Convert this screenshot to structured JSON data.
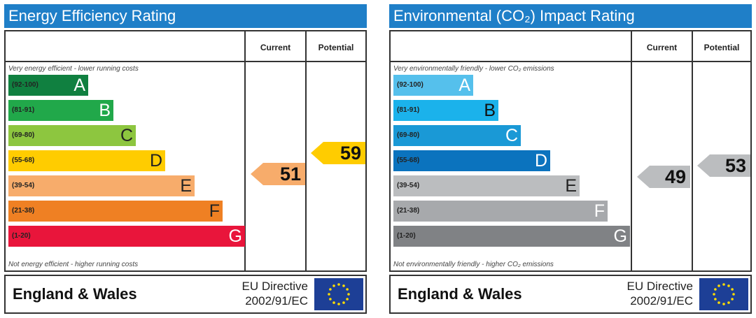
{
  "chart_data": [
    {
      "type": "bar",
      "title": "Energy Efficiency Rating",
      "column_headers": [
        "Current",
        "Potential"
      ],
      "top_note": "Very energy efficient - lower running costs",
      "bottom_note": "Not energy efficient - higher running costs",
      "bands": [
        {
          "range": "(92-100)",
          "letter": "A",
          "color": "#108040"
        },
        {
          "range": "(81-91)",
          "letter": "B",
          "color": "#21a84a"
        },
        {
          "range": "(69-80)",
          "letter": "C",
          "color": "#8dc63f"
        },
        {
          "range": "(55-68)",
          "letter": "D",
          "color": "#ffcc00"
        },
        {
          "range": "(39-54)",
          "letter": "E",
          "color": "#f7ac6b"
        },
        {
          "range": "(21-38)",
          "letter": "F",
          "color": "#ef8023"
        },
        {
          "range": "(1-20)",
          "letter": "G",
          "color": "#e9153b"
        }
      ],
      "current": {
        "value": 51,
        "band": "E"
      },
      "potential": {
        "value": 59,
        "band": "D"
      },
      "footer": {
        "country": "England & Wales",
        "directive_line1": "EU Directive",
        "directive_line2": "2002/91/EC"
      }
    },
    {
      "type": "bar",
      "title": "Environmental (CO₂) Impact Rating",
      "column_headers": [
        "Current",
        "Potential"
      ],
      "top_note": "Very environmentally friendly - lower CO₂ emissions",
      "bottom_note": "Not environmentally friendly - higher CO₂ emissions",
      "bands": [
        {
          "range": "(92-100)",
          "letter": "A",
          "color": "#55c0ec"
        },
        {
          "range": "(81-91)",
          "letter": "B",
          "color": "#1bb2eb"
        },
        {
          "range": "(69-80)",
          "letter": "C",
          "color": "#1a99d6"
        },
        {
          "range": "(55-68)",
          "letter": "D",
          "color": "#0b73be"
        },
        {
          "range": "(39-54)",
          "letter": "E",
          "color": "#bbbdbf"
        },
        {
          "range": "(21-38)",
          "letter": "F",
          "color": "#a7a9ac"
        },
        {
          "range": "(1-20)",
          "letter": "G",
          "color": "#808285"
        }
      ],
      "current": {
        "value": 49,
        "band": "E"
      },
      "potential": {
        "value": 53,
        "band": "E"
      },
      "footer": {
        "country": "England & Wales",
        "directive_line1": "EU Directive",
        "directive_line2": "2002/91/EC"
      }
    }
  ],
  "icons": {
    "flag": "eu-flag-icon"
  },
  "colors": {
    "header": "#1f7fc8",
    "flag": "#1d3f96",
    "star": "#ffdd00"
  }
}
